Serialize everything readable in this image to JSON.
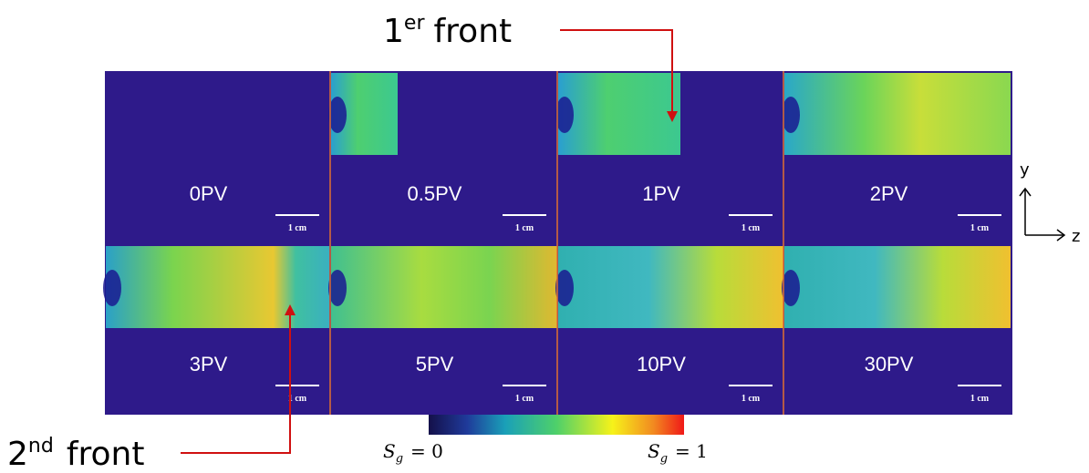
{
  "annotations": {
    "first_front": {
      "number": "1",
      "sup": "er",
      "text": "front"
    },
    "second_front": {
      "number": "2",
      "sup": "nd",
      "text": "front"
    }
  },
  "panels": [
    {
      "label": "0PV"
    },
    {
      "label": "0.5PV"
    },
    {
      "label": "1PV"
    },
    {
      "label": "2PV"
    },
    {
      "label": "3PV"
    },
    {
      "label": "5PV"
    },
    {
      "label": "10PV"
    },
    {
      "label": "30PV"
    }
  ],
  "scale_bar": "1 cm",
  "colorbar": {
    "low": {
      "symbol": "S",
      "sub": "g",
      "text": "= 0"
    },
    "high": {
      "symbol": "S",
      "sub": "g",
      "text": "= 1"
    }
  },
  "axes": {
    "y": "y",
    "z": "z"
  }
}
